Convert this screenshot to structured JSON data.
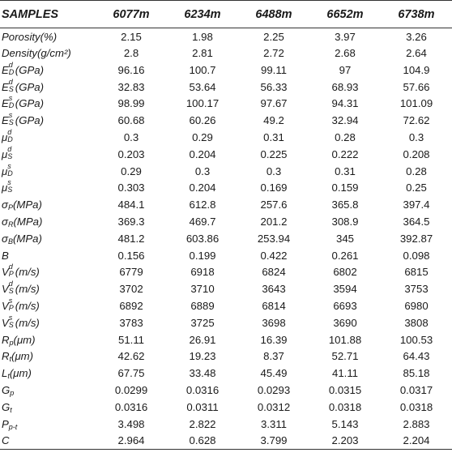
{
  "table": {
    "header": {
      "label": "SAMPLES",
      "columns": [
        {
          "num": "6077",
          "unit": "m"
        },
        {
          "num": "6234",
          "unit": "m"
        },
        {
          "num": "6488",
          "unit": "m"
        },
        {
          "num": "6652",
          "unit": "m"
        },
        {
          "num": "6738",
          "unit": "m"
        }
      ]
    },
    "rows": [
      {
        "base": "Porosity",
        "sup": "",
        "sub": "",
        "unit": "(%)",
        "values": [
          "2.15",
          "1.98",
          "2.25",
          "3.97",
          "3.26"
        ]
      },
      {
        "base": "Density",
        "sup": "",
        "sub": "",
        "unit": "(g/cm²)",
        "values": [
          "2.8",
          "2.81",
          "2.72",
          "2.68",
          "2.64"
        ]
      },
      {
        "base": "E",
        "sup": "d",
        "sub": "D",
        "unit": "(GPa)",
        "values": [
          "96.16",
          "100.7",
          "99.11",
          "97",
          "104.9"
        ]
      },
      {
        "base": "E",
        "sup": "d",
        "sub": "S",
        "unit": "(GPa)",
        "values": [
          "32.83",
          "53.64",
          "56.33",
          "68.93",
          "57.66"
        ]
      },
      {
        "base": "E",
        "sup": "s",
        "sub": "D",
        "unit": "(GPa)",
        "values": [
          "98.99",
          "100.17",
          "97.67",
          "94.31",
          "101.09"
        ]
      },
      {
        "base": "E",
        "sup": "s",
        "sub": "S",
        "unit": "(GPa)",
        "values": [
          "60.68",
          "60.26",
          "49.2",
          "32.94",
          "72.62"
        ]
      },
      {
        "base": "μ",
        "sup": "d",
        "sub": "D",
        "unit": "",
        "values": [
          "0.3",
          "0.29",
          "0.31",
          "0.28",
          "0.3"
        ]
      },
      {
        "base": "μ",
        "sup": "d",
        "sub": "S",
        "unit": "",
        "values": [
          "0.203",
          "0.204",
          "0.225",
          "0.222",
          "0.208"
        ]
      },
      {
        "base": "μ",
        "sup": "s",
        "sub": "D",
        "unit": "",
        "values": [
          "0.29",
          "0.3",
          "0.3",
          "0.31",
          "0.28"
        ]
      },
      {
        "base": "μ",
        "sup": "s",
        "sub": "S",
        "unit": "",
        "values": [
          "0.303",
          "0.204",
          "0.169",
          "0.159",
          "0.25"
        ]
      },
      {
        "base": "σ",
        "sup": "",
        "sub": "P",
        "unit": "(MPa)",
        "values": [
          "484.1",
          "612.8",
          "257.6",
          "365.8",
          "397.4"
        ]
      },
      {
        "base": "σ",
        "sup": "",
        "sub": "R",
        "unit": "(MPa)",
        "values": [
          "369.3",
          "469.7",
          "201.2",
          "308.9",
          "364.5"
        ]
      },
      {
        "base": "σ",
        "sup": "",
        "sub": "B",
        "unit": "(MPa)",
        "values": [
          "481.2",
          "603.86",
          "253.94",
          "345",
          "392.87"
        ]
      },
      {
        "base": "B",
        "sup": "",
        "sub": "",
        "unit": "",
        "values": [
          "0.156",
          "0.199",
          "0.422",
          "0.261",
          "0.098"
        ]
      },
      {
        "base": "V",
        "sup": "d",
        "sub": "P",
        "unit": "(m/s)",
        "values": [
          "6779",
          "6918",
          "6824",
          "6802",
          "6815"
        ]
      },
      {
        "base": "V",
        "sup": "d",
        "sub": "S",
        "unit": "(m/s)",
        "values": [
          "3702",
          "3710",
          "3643",
          "3594",
          "3753"
        ]
      },
      {
        "base": "V",
        "sup": "s",
        "sub": "P",
        "unit": "(m/s)",
        "values": [
          "6892",
          "6889",
          "6814",
          "6693",
          "6980"
        ]
      },
      {
        "base": "V",
        "sup": "s",
        "sub": "S",
        "unit": "(m/s)",
        "values": [
          "3783",
          "3725",
          "3698",
          "3690",
          "3808"
        ]
      },
      {
        "base": "R",
        "sup": "",
        "sub": "p",
        "unit": "(μm)",
        "values": [
          "51.11",
          "26.91",
          "16.39",
          "101.88",
          "100.53"
        ]
      },
      {
        "base": "R",
        "sup": "",
        "sub": "t",
        "unit": "(μm)",
        "values": [
          "42.62",
          "19.23",
          "8.37",
          "52.71",
          "64.43"
        ]
      },
      {
        "base": "L",
        "sup": "",
        "sub": "t",
        "unit": "(μm)",
        "values": [
          "67.75",
          "33.48",
          "45.49",
          "41.11",
          "85.18"
        ]
      },
      {
        "base": "G",
        "sup": "",
        "sub": "p",
        "unit": "",
        "values": [
          "0.0299",
          "0.0316",
          "0.0293",
          "0.0315",
          "0.0317"
        ]
      },
      {
        "base": "G",
        "sup": "",
        "sub": "t",
        "unit": "",
        "values": [
          "0.0316",
          "0.0311",
          "0.0312",
          "0.0318",
          "0.0318"
        ]
      },
      {
        "base": "P",
        "sup": "",
        "sub": "p-t",
        "unit": "",
        "values": [
          "3.498",
          "2.822",
          "3.311",
          "5.143",
          "2.883"
        ]
      },
      {
        "base": "C",
        "sup": "",
        "sub": "",
        "unit": "",
        "values": [
          "2.964",
          "0.628",
          "3.799",
          "2.203",
          "2.204"
        ]
      }
    ]
  }
}
